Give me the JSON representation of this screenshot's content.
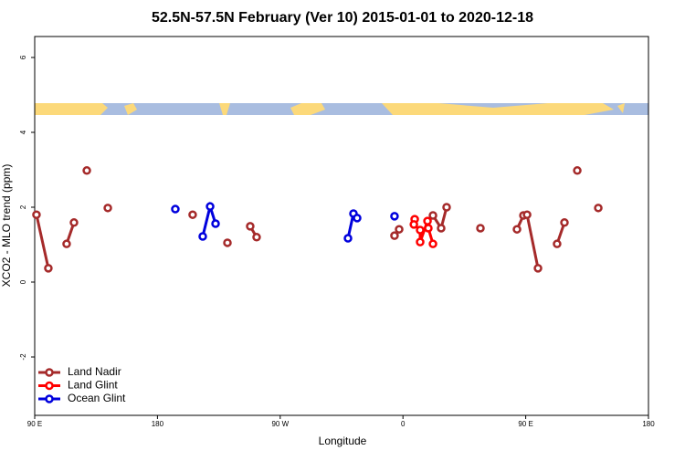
{
  "chart_data": {
    "type": "line",
    "title": "52.5N-57.5N February (Ver 10)   2015-01-01 to 2020-12-18",
    "x_label": "Longitude",
    "y_label": "XCO2 - MLO trend (ppm)",
    "xlim": [
      90,
      540
    ],
    "ylim": [
      -3.56,
      6.56
    ],
    "xticks": [
      {
        "value": 90,
        "label": "90 E"
      },
      {
        "value": 180,
        "label": "180"
      },
      {
        "value": 270,
        "label": "90 W"
      },
      {
        "value": 360,
        "label": "0"
      },
      {
        "value": 450,
        "label": "90 E"
      },
      {
        "value": 540,
        "label": "180"
      }
    ],
    "yticks": [
      6,
      4,
      2,
      0,
      -2
    ],
    "legend": "bottom-left",
    "series": [
      {
        "name": "Land Nadir",
        "color": "#a52a2a",
        "x": [
          91.3,
          100,
          null,
          113.4,
          118.8,
          null,
          128.2,
          null,
          143.6,
          null,
          205.8,
          null,
          231.3,
          null,
          248,
          252.7,
          null,
          353.8,
          357.2,
          null,
          382,
          388,
          392,
          null,
          416.8,
          null,
          443.6,
          448.3,
          451,
          459,
          null,
          473,
          478.4,
          null,
          487.8,
          null,
          503.2
        ],
        "values": [
          1.8,
          0.37,
          null,
          1.02,
          1.59,
          null,
          2.98,
          null,
          1.98,
          null,
          1.8,
          null,
          1.05,
          null,
          1.49,
          1.2,
          null,
          1.24,
          1.41,
          null,
          1.78,
          1.44,
          2.0,
          null,
          1.44,
          null,
          1.41,
          1.78,
          1.8,
          0.37,
          null,
          1.02,
          1.59,
          null,
          2.98,
          null,
          1.98
        ]
      },
      {
        "name": "Land Glint",
        "color": "#ff0000",
        "x": [
          368.6,
          368,
          372.6,
          372.6,
          378,
          378.6,
          382
        ],
        "values": [
          1.68,
          1.54,
          1.39,
          1.07,
          1.63,
          1.44,
          1.02
        ]
      },
      {
        "name": "Ocean Glint",
        "color": "#0000dd",
        "x": [
          193.1,
          null,
          213.2,
          218.6,
          222.6,
          null,
          319.7,
          323.7,
          326.4,
          null,
          353.8
        ],
        "values": [
          1.95,
          null,
          1.22,
          2.02,
          1.56,
          null,
          1.17,
          1.83,
          1.71,
          null,
          1.76
        ]
      }
    ]
  }
}
